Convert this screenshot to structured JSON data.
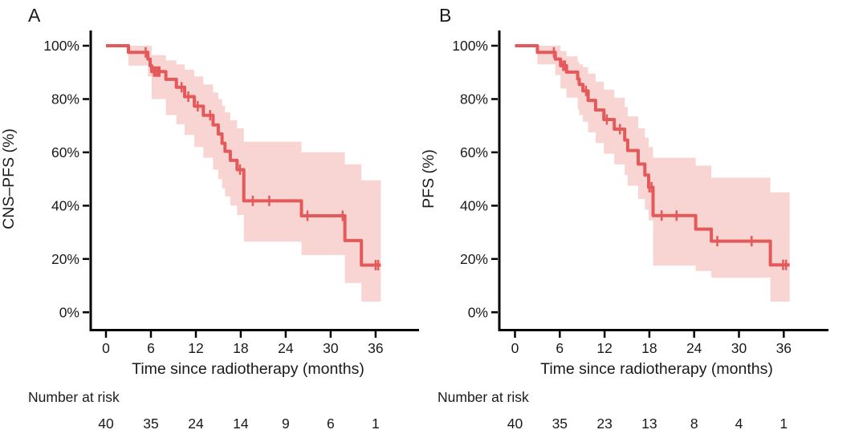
{
  "figure": {
    "description": "Two-panel Kaplan-Meier survival figure with shaded 95% confidence bands and number-at-risk tables",
    "background_color": "#ffffff",
    "axis_color": "#000000",
    "text_color": "#1a1a1a"
  },
  "chart_data": [
    {
      "type": "line",
      "subtype": "kaplan-meier-step",
      "title": "A",
      "ylabel": "CNS–PFS (%)",
      "xlabel": "Time since radiotherapy (months)",
      "xlim": [
        0,
        42
      ],
      "ylim": [
        0,
        100
      ],
      "x_tick_values": [
        0,
        6,
        12,
        18,
        24,
        30,
        36
      ],
      "x_tick_labels": [
        "0",
        "6",
        "12",
        "18",
        "24",
        "30",
        "36"
      ],
      "y_tick_values": [
        0,
        20,
        40,
        60,
        80,
        100
      ],
      "y_tick_labels": [
        "0%",
        "20%",
        "40%",
        "60%",
        "80%",
        "100%"
      ],
      "curve_color": "#e4595a",
      "band_color": "#f8d5d2",
      "curve_end_time": 36.7,
      "steps": [
        [
          0,
          100
        ],
        [
          3,
          97.5
        ],
        [
          5.6,
          95
        ],
        [
          5.9,
          92.5
        ],
        [
          6.1,
          90.3
        ],
        [
          8.0,
          87.4
        ],
        [
          9.4,
          84.4
        ],
        [
          10.5,
          80.9
        ],
        [
          11.8,
          77.3
        ],
        [
          13.0,
          73.9
        ],
        [
          14.3,
          70.3
        ],
        [
          15.0,
          66.9
        ],
        [
          15.5,
          63.4
        ],
        [
          15.9,
          60.4
        ],
        [
          16.6,
          57.0
        ],
        [
          17.5,
          53.5
        ],
        [
          18.4,
          41.8
        ],
        [
          26.1,
          36.2
        ],
        [
          31.9,
          26.9
        ],
        [
          34.1,
          17.7
        ]
      ],
      "censor_marks": [
        [
          5.3,
          97.5
        ],
        [
          6.4,
          90.3
        ],
        [
          6.65,
          90.3
        ],
        [
          6.9,
          90.3
        ],
        [
          7.15,
          90.3
        ],
        [
          10.1,
          84.4
        ],
        [
          11.0,
          80.9
        ],
        [
          12.25,
          77.3
        ],
        [
          13.9,
          73.9
        ],
        [
          17.9,
          53.5
        ],
        [
          19.6,
          41.8
        ],
        [
          21.8,
          41.8
        ],
        [
          26.9,
          36.2
        ],
        [
          31.6,
          36.2
        ],
        [
          36.0,
          17.7
        ],
        [
          36.35,
          17.7
        ]
      ],
      "confidence_band": [
        [
          3,
          92.5,
          100
        ],
        [
          5.6,
          88.5,
          100
        ],
        [
          6.1,
          80,
          96.5
        ],
        [
          8.0,
          74,
          94.5
        ],
        [
          9.4,
          70.5,
          93
        ],
        [
          10.5,
          66.5,
          91
        ],
        [
          11.8,
          62,
          88.5
        ],
        [
          13.0,
          58,
          85.5
        ],
        [
          14.3,
          53.5,
          82.5
        ],
        [
          15.0,
          50,
          80
        ],
        [
          15.5,
          46.5,
          77.5
        ],
        [
          15.9,
          43.5,
          75
        ],
        [
          16.6,
          40,
          72
        ],
        [
          17.5,
          36.5,
          69
        ],
        [
          18.4,
          26.5,
          64
        ],
        [
          26.1,
          21.5,
          60
        ],
        [
          31.9,
          11,
          55.5
        ],
        [
          34.1,
          4,
          49.5
        ]
      ],
      "number_at_risk": {
        "label": "Number at risk",
        "times": [
          0,
          6,
          12,
          18,
          24,
          30,
          36
        ],
        "counts": [
          "40",
          "35",
          "24",
          "14",
          "9",
          "6",
          "1"
        ]
      }
    },
    {
      "type": "line",
      "subtype": "kaplan-meier-step",
      "title": "B",
      "ylabel": "PFS (%)",
      "xlabel": "Time since radiotherapy (months)",
      "xlim": [
        0,
        42
      ],
      "ylim": [
        0,
        100
      ],
      "x_tick_values": [
        0,
        6,
        12,
        18,
        24,
        30,
        36
      ],
      "x_tick_labels": [
        "0",
        "6",
        "12",
        "18",
        "24",
        "30",
        "36"
      ],
      "y_tick_values": [
        0,
        20,
        40,
        60,
        80,
        100
      ],
      "y_tick_labels": [
        "0%",
        "20%",
        "40%",
        "60%",
        "80%",
        "100%"
      ],
      "curve_color": "#e4595a",
      "band_color": "#f8d5d2",
      "curve_end_time": 36.8,
      "steps": [
        [
          0,
          100
        ],
        [
          3,
          97.5
        ],
        [
          5.4,
          95
        ],
        [
          6.1,
          92.5
        ],
        [
          6.9,
          90.1
        ],
        [
          8.4,
          87.5
        ],
        [
          8.6,
          85.5
        ],
        [
          9.1,
          83.1
        ],
        [
          9.8,
          79.5
        ],
        [
          10.8,
          75.9
        ],
        [
          11.9,
          72.3
        ],
        [
          13.3,
          68.7
        ],
        [
          14.7,
          64.6
        ],
        [
          15.1,
          60.7
        ],
        [
          16.5,
          55.6
        ],
        [
          17.4,
          51.5
        ],
        [
          17.9,
          46.9
        ],
        [
          18.5,
          36.3
        ],
        [
          24.2,
          31.2
        ],
        [
          26.3,
          26.7
        ],
        [
          34.2,
          17.8
        ]
      ],
      "censor_marks": [
        [
          5.2,
          97.5
        ],
        [
          6.45,
          92.5
        ],
        [
          6.7,
          92.5
        ],
        [
          9.5,
          83.1
        ],
        [
          12.3,
          72.3
        ],
        [
          14.05,
          68.7
        ],
        [
          18.0,
          46.9
        ],
        [
          18.3,
          46.9
        ],
        [
          19.65,
          36.3
        ],
        [
          21.65,
          36.3
        ],
        [
          27.1,
          26.7
        ],
        [
          31.7,
          26.7
        ],
        [
          35.9,
          17.8
        ],
        [
          36.3,
          17.8
        ]
      ],
      "confidence_band": [
        [
          3,
          93,
          100
        ],
        [
          5.4,
          89,
          100
        ],
        [
          6.1,
          84,
          98
        ],
        [
          6.9,
          80.5,
          96
        ],
        [
          8.4,
          76,
          94
        ],
        [
          8.6,
          74,
          93
        ],
        [
          9.1,
          71.5,
          92
        ],
        [
          9.8,
          67.5,
          89.5
        ],
        [
          10.8,
          63.5,
          86.5
        ],
        [
          11.9,
          59.5,
          83.5
        ],
        [
          13.3,
          55.5,
          80.5
        ],
        [
          14.7,
          51.5,
          77
        ],
        [
          15.1,
          47.5,
          73.5
        ],
        [
          16.5,
          42.5,
          69
        ],
        [
          17.4,
          38.5,
          65.5
        ],
        [
          17.9,
          34.5,
          62
        ],
        [
          18.5,
          17.5,
          58
        ],
        [
          24.2,
          15.5,
          55
        ],
        [
          26.3,
          13,
          50.5
        ],
        [
          34.2,
          4,
          45
        ]
      ],
      "number_at_risk": {
        "label": "Number at risk",
        "times": [
          0,
          6,
          12,
          18,
          24,
          30,
          36
        ],
        "counts": [
          "40",
          "35",
          "23",
          "13",
          "8",
          "4",
          "1"
        ]
      }
    }
  ]
}
